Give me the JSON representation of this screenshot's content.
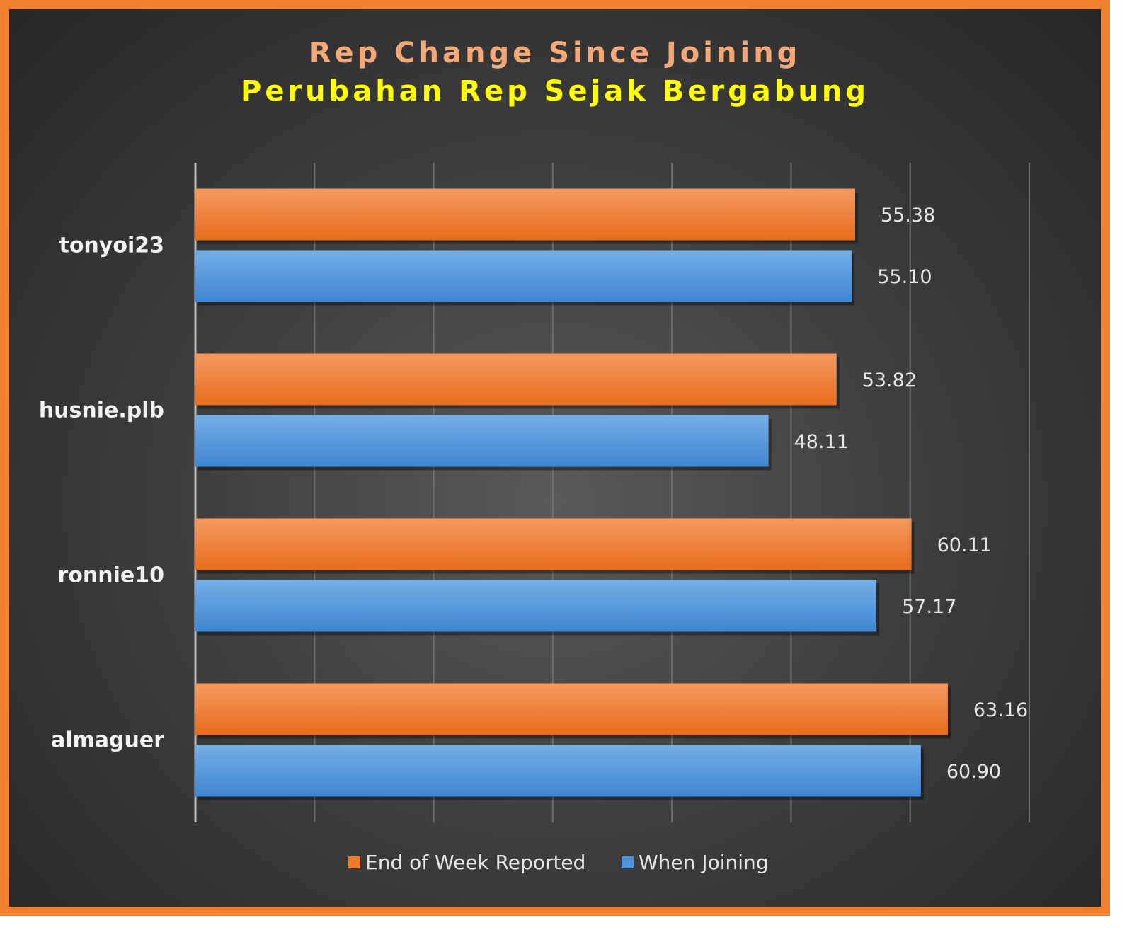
{
  "chart_data": {
    "type": "bar",
    "orientation": "horizontal",
    "title": "Rep Change Since Joining",
    "subtitle": "Perubahan Rep Sejak Bergabung",
    "categories": [
      "tonyoi23",
      "husnie.plb",
      "ronnie10",
      "almaguer"
    ],
    "series": [
      {
        "name": "End of Week Reported",
        "color": "#ef7a2e",
        "values": [
          55.38,
          53.82,
          60.11,
          63.16
        ],
        "labels": [
          "55.38",
          "53.82",
          "60.11",
          "63.16"
        ]
      },
      {
        "name": "When Joining",
        "color": "#4f93d8",
        "values": [
          55.1,
          48.11,
          57.17,
          60.9
        ],
        "labels": [
          "55.10",
          "48.11",
          "57.17",
          "60.90"
        ]
      }
    ],
    "xlim": [
      0,
      70
    ],
    "grid": true,
    "legend": "bottom-center",
    "colors": {
      "title": "#f4a878",
      "subtitle": "#ffff00",
      "frame": "#f0812e"
    }
  }
}
